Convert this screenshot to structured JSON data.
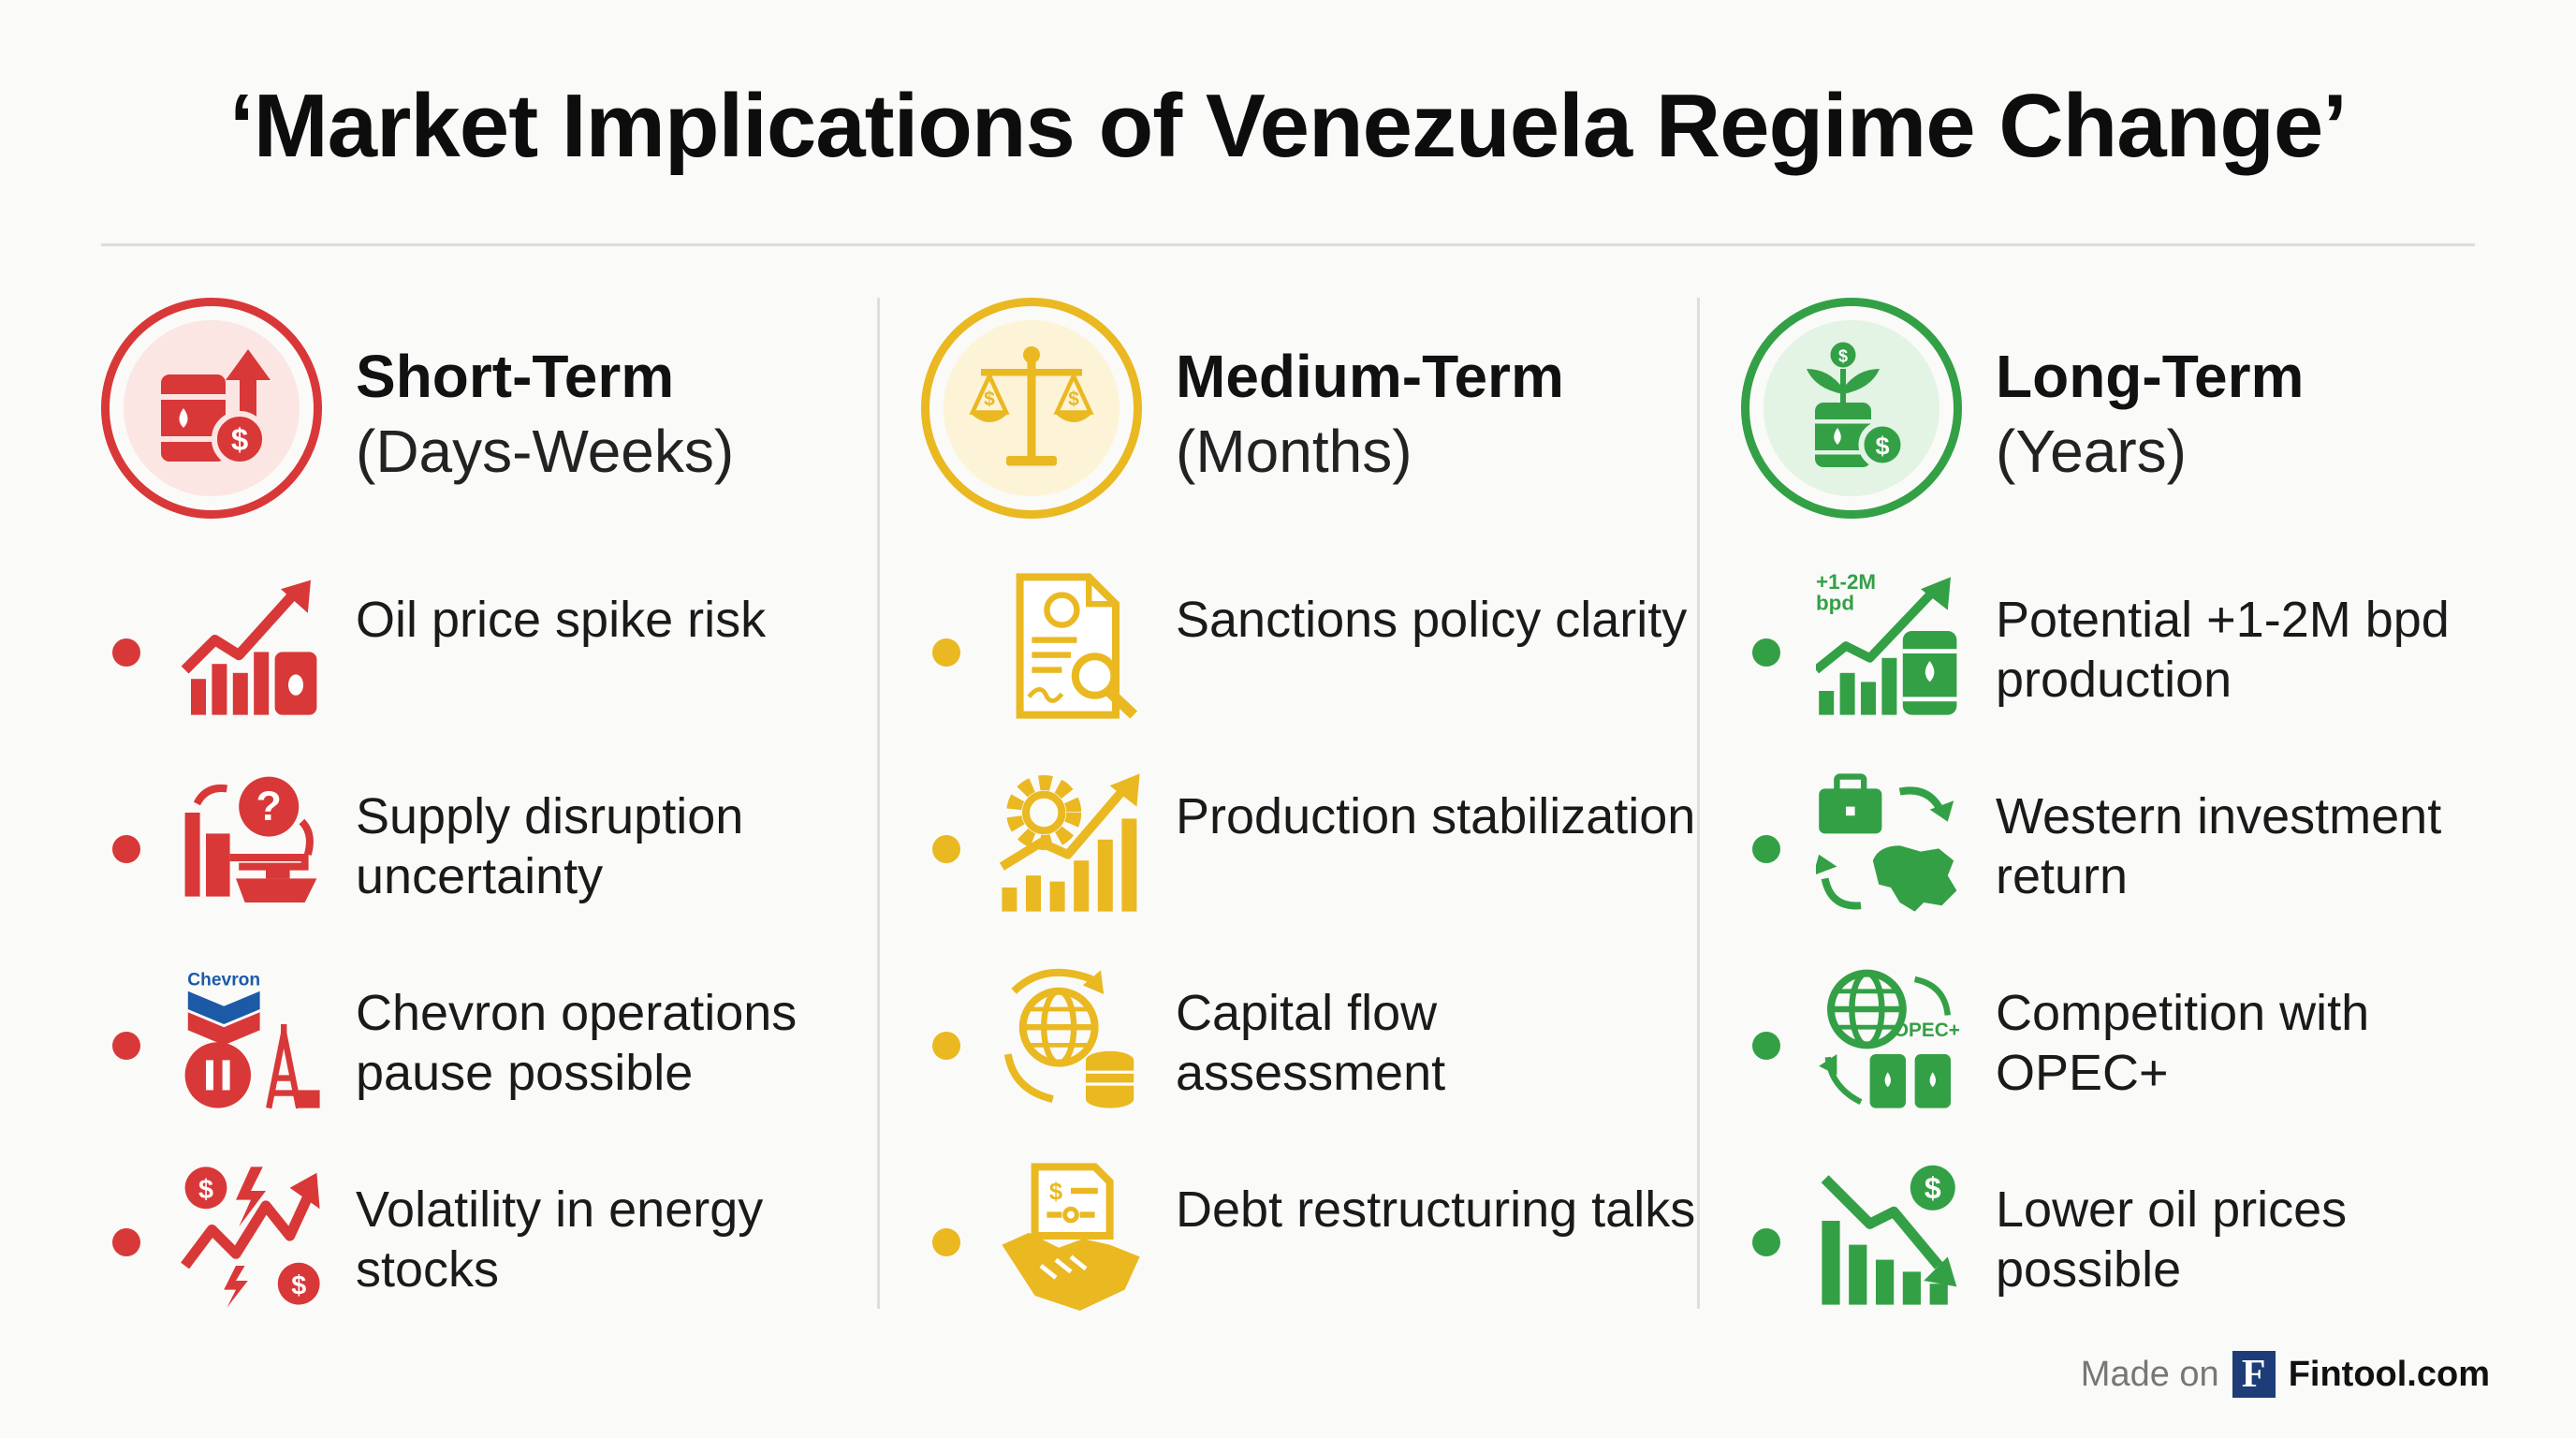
{
  "title": "‘Market Implications of Venezuela Regime Change’",
  "columns": [
    {
      "title": "Short-Term",
      "subtitle": "(Days-Weeks)",
      "color": "#d93838",
      "icon": "oil-barrel-price-up-icon",
      "items": [
        {
          "text": "Oil price spike risk",
          "icon": "rising-chart-oil-barrel-icon"
        },
        {
          "text": "Supply disruption uncertainty",
          "icon": "refinery-tanker-question-icon"
        },
        {
          "text": "Chevron operations pause possible",
          "icon": "chevron-pause-oil-rig-icon",
          "logo_text": "Chevron"
        },
        {
          "text": "Volatility in energy stocks",
          "icon": "dollar-volatility-lightning-icon"
        }
      ]
    },
    {
      "title": "Medium-Term",
      "subtitle": "(Months)",
      "color": "#eab821",
      "icon": "balance-scale-icon",
      "items": [
        {
          "text": "Sanctions policy clarity",
          "icon": "document-magnifier-icon"
        },
        {
          "text": "Production stabilization",
          "icon": "gear-bar-chart-icon"
        },
        {
          "text": "Capital flow assessment",
          "icon": "globe-coins-icon"
        },
        {
          "text": "Debt restructuring talks",
          "icon": "handshake-document-icon"
        }
      ]
    },
    {
      "title": "Long-Term",
      "subtitle": "(Years)",
      "color": "#33a046",
      "icon": "plant-oil-barrel-icon",
      "items": [
        {
          "text": "Potential +1-2M bpd production",
          "icon": "production-growth-barrel-icon",
          "badge_line1": "+1-2M",
          "badge_line2": "bpd"
        },
        {
          "text": "Western investment return",
          "icon": "briefcase-venezuela-map-icon"
        },
        {
          "text": "Competition with OPEC+",
          "icon": "globe-opec-barrels-icon",
          "badge": "OPEC+"
        },
        {
          "text": "Lower oil prices possible",
          "icon": "falling-chart-dollar-icon"
        }
      ]
    }
  ],
  "footer": {
    "made_on": "Made on",
    "logo_letter": "F",
    "brand": "Fintool.com"
  }
}
